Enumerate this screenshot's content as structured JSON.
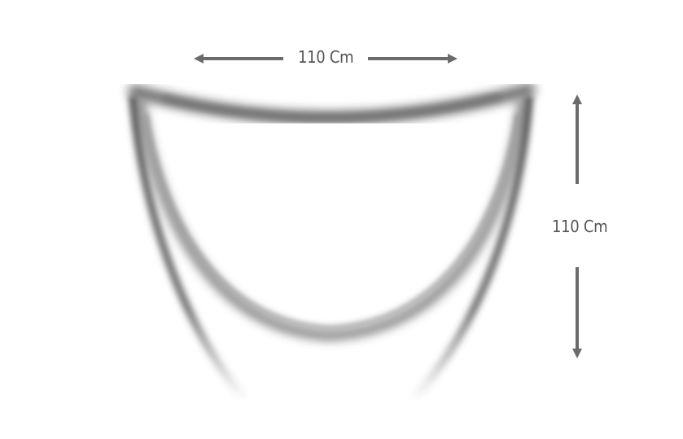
{
  "dimensions": {
    "width_label": "110 Cm",
    "height_label": "110 Cm"
  },
  "colors": {
    "arrow": "#6b6b6b",
    "label": "#555555",
    "fold_shadow": "#5a5a5a"
  },
  "icons": {
    "width_arrow": "double-headed-horizontal-arrow",
    "height_arrow": "double-headed-vertical-arrow"
  }
}
